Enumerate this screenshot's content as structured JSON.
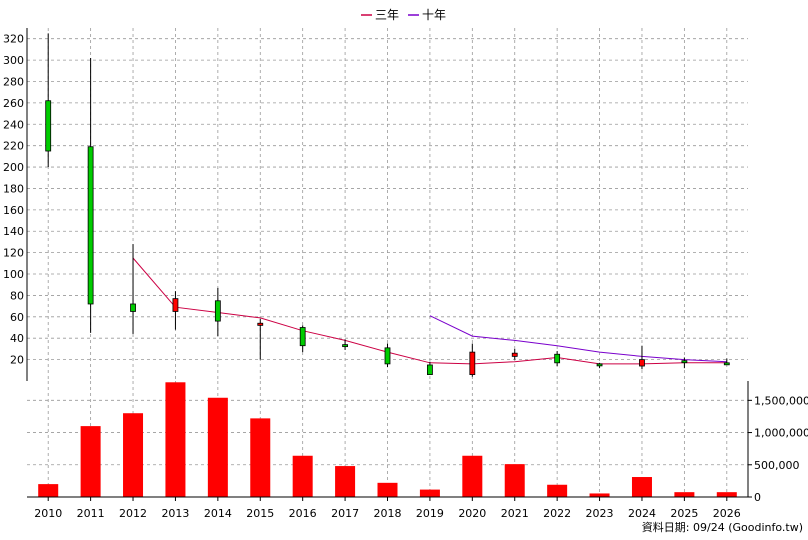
{
  "legend": [
    {
      "label": "三年",
      "color": "#cc0044"
    },
    {
      "label": "十年",
      "color": "#7a00cc"
    }
  ],
  "source_note": "資料日期: 09/24  (Goodinfo.tw)",
  "colors": {
    "up": "#ff0000",
    "down": "#00cc00",
    "volume": "#ff0000",
    "grid": "#999999",
    "axis": "#000000"
  },
  "chart_data": [
    {
      "type": "candlestick",
      "x": [
        "2010",
        "2011",
        "2012",
        "2013",
        "2014",
        "2015",
        "2016",
        "2017",
        "2018",
        "2019",
        "2020",
        "2021",
        "2022",
        "2023",
        "2024",
        "2025",
        "2026"
      ],
      "ohlc": [
        {
          "open": 262,
          "high": 325,
          "low": 200,
          "close": 215
        },
        {
          "open": 219,
          "high": 302,
          "low": 45,
          "close": 72
        },
        {
          "open": 72,
          "high": 128,
          "low": 44,
          "close": 65
        },
        {
          "open": 65,
          "high": 84,
          "low": 48,
          "close": 77
        },
        {
          "open": 75,
          "high": 87,
          "low": 42,
          "close": 56
        },
        {
          "open": 52,
          "high": 58,
          "low": 20,
          "close": 54
        },
        {
          "open": 50,
          "high": 52,
          "low": 27,
          "close": 33
        },
        {
          "open": 34,
          "high": 39,
          "low": 29,
          "close": 33
        },
        {
          "open": 31,
          "high": 35,
          "low": 13,
          "close": 16
        },
        {
          "open": 15,
          "high": 18,
          "low": 6,
          "close": 6
        },
        {
          "open": 6,
          "high": 35,
          "low": 4,
          "close": 27
        },
        {
          "open": 23,
          "high": 30,
          "low": 20,
          "close": 26
        },
        {
          "open": 25,
          "high": 28,
          "low": 14,
          "close": 17
        },
        {
          "open": 16,
          "high": 17,
          "low": 12,
          "close": 15
        },
        {
          "open": 14,
          "high": 33,
          "low": 11,
          "close": 20
        },
        {
          "open": 19,
          "high": 22,
          "low": 12,
          "close": 19
        },
        {
          "open": 17,
          "high": 21,
          "low": 15,
          "close": 16
        }
      ],
      "series": [
        {
          "name": "三年",
          "values": [
            null,
            null,
            115,
            69,
            64,
            59,
            47,
            38,
            27,
            17,
            16,
            18,
            22,
            16,
            16,
            17,
            17
          ]
        },
        {
          "name": "十年",
          "values": [
            null,
            null,
            null,
            null,
            null,
            null,
            null,
            null,
            null,
            61,
            42,
            38,
            33,
            27,
            23,
            20,
            18
          ]
        }
      ],
      "ylim": [
        0,
        330
      ],
      "yticks": [
        20,
        40,
        60,
        80,
        100,
        120,
        140,
        160,
        180,
        200,
        220,
        240,
        260,
        280,
        300,
        320
      ],
      "grid": true,
      "legend_position": "top-center"
    },
    {
      "type": "bar",
      "categories": [
        "2010",
        "2011",
        "2012",
        "2013",
        "2014",
        "2015",
        "2016",
        "2017",
        "2018",
        "2019",
        "2020",
        "2021",
        "2022",
        "2023",
        "2024",
        "2025",
        "2026"
      ],
      "values": [
        200000,
        1100000,
        1300000,
        1780000,
        1540000,
        1220000,
        640000,
        480000,
        220000,
        115000,
        640000,
        510000,
        190000,
        55000,
        310000,
        75000,
        75000
      ],
      "ylim": [
        0,
        1800000
      ],
      "yticks": [
        0,
        500000,
        1000000,
        1500000
      ],
      "yticklabels": [
        "0",
        "500,000",
        "1,000,000",
        "1,500,000"
      ],
      "grid": true
    }
  ]
}
